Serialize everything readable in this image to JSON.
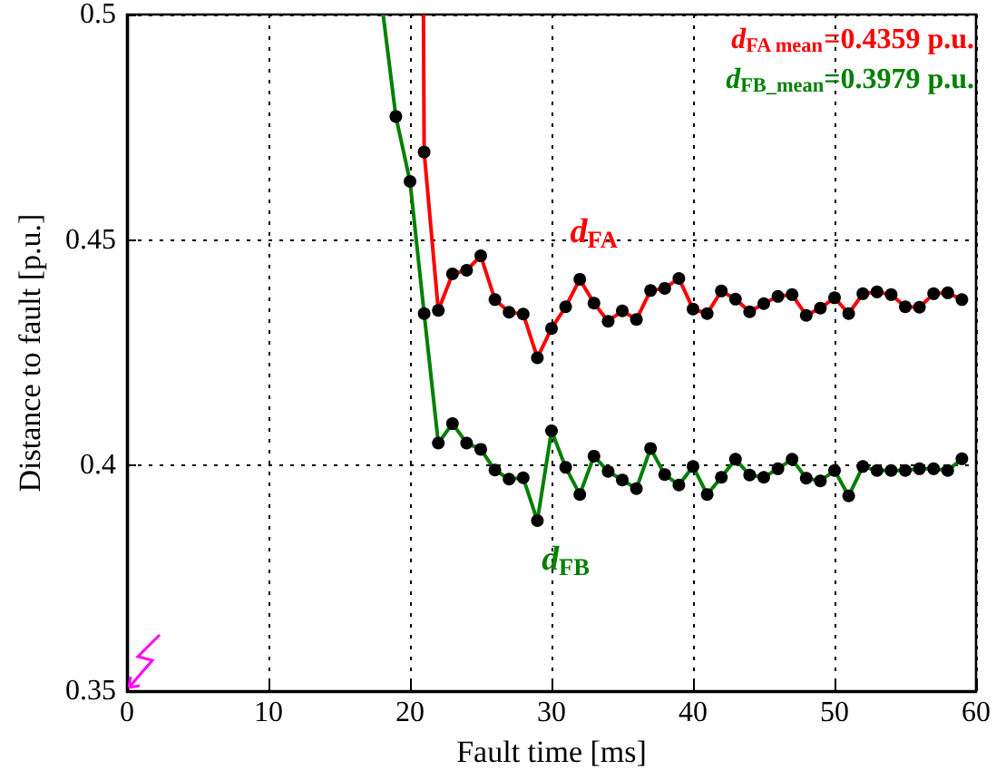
{
  "chart_data": {
    "type": "line",
    "xlabel": "Fault time [ms]",
    "ylabel": "Distance to fault [p.u.]",
    "xlim": [
      0,
      60
    ],
    "xticks": [
      0,
      10,
      20,
      30,
      40,
      50,
      60
    ],
    "ylim": [
      0.35,
      0.5
    ],
    "yticks": [
      0.35,
      0.4,
      0.45,
      0.5
    ],
    "grid": true,
    "marker": "circle",
    "line_style": "solid",
    "series": [
      {
        "name": "d$_{FA}$",
        "color": "#ff0000",
        "x": [
          20.95,
          21,
          22,
          23,
          24,
          25,
          26,
          27,
          28,
          29,
          30,
          31,
          32,
          33,
          34,
          35,
          36,
          37,
          38,
          39,
          40,
          41,
          42,
          43,
          44,
          45,
          46,
          47,
          48,
          49,
          50,
          51,
          52,
          53,
          54,
          55,
          56,
          57,
          58,
          59
        ],
        "values": [
          0.5,
          0.4695,
          0.4344,
          0.4425,
          0.4433,
          0.4465,
          0.4368,
          0.434,
          0.4336,
          0.4239,
          0.4304,
          0.4352,
          0.4413,
          0.436,
          0.432,
          0.4343,
          0.4324,
          0.4388,
          0.4393,
          0.4415,
          0.4347,
          0.4337,
          0.4387,
          0.4369,
          0.4341,
          0.4359,
          0.4375,
          0.4379,
          0.4333,
          0.4349,
          0.4372,
          0.4337,
          0.4381,
          0.4385,
          0.4379,
          0.4352,
          0.4351,
          0.4381,
          0.4383,
          0.4368
        ]
      },
      {
        "name": "d$_{FB}$",
        "color": "#008000",
        "x": [
          18.1,
          19,
          20,
          21,
          22,
          23,
          24,
          25,
          26,
          27,
          28,
          29,
          30,
          31,
          32,
          33,
          34,
          35,
          36,
          37,
          38,
          39,
          40,
          41,
          42,
          43,
          44,
          45,
          46,
          47,
          48,
          49,
          50,
          51,
          52,
          53,
          54,
          55,
          56,
          57,
          58,
          59
        ],
        "values": [
          0.5,
          0.4774,
          0.463,
          0.4337,
          0.405,
          0.4093,
          0.405,
          0.4036,
          0.399,
          0.397,
          0.3973,
          0.3878,
          0.4077,
          0.3996,
          0.3936,
          0.4021,
          0.3987,
          0.3968,
          0.3949,
          0.4038,
          0.398,
          0.3957,
          0.3998,
          0.3936,
          0.3974,
          0.4014,
          0.3979,
          0.3974,
          0.3993,
          0.4014,
          0.3972,
          0.3966,
          0.3989,
          0.3933,
          0.3998,
          0.3989,
          0.3989,
          0.3989,
          0.3993,
          0.3993,
          0.3989,
          0.4015
        ]
      }
    ],
    "annotations": [
      "d$_{FA mean}$=0.4359 p.u.",
      "d$_{FB_mean}$=0.3979 p.u."
    ]
  }
}
